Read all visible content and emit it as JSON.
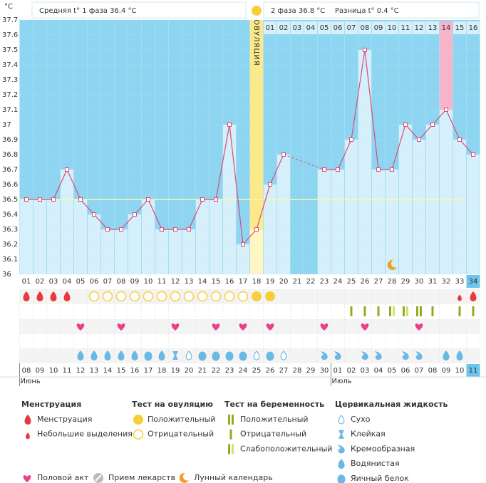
{
  "chart_data": {
    "type": "line",
    "y_unit": "°C",
    "header": {
      "phase1": "Средняя t° 1 фаза 36.4 °C",
      "phase2": "2 фаза 36.8 °C",
      "difference": "Разница t° 0.4 °C"
    },
    "ovulation_label": "ОВУЛЯЦИЯ",
    "categories": [
      "01",
      "02",
      "03",
      "04",
      "05",
      "06",
      "07",
      "08",
      "09",
      "10",
      "11",
      "12",
      "13",
      "14",
      "15",
      "16",
      "17",
      "18",
      "19",
      "20",
      "21",
      "22",
      "23",
      "24",
      "25",
      "26",
      "27",
      "28",
      "29",
      "30",
      "31",
      "32",
      "33",
      "34"
    ],
    "phase2_days": [
      "01",
      "02",
      "03",
      "04",
      "05",
      "06",
      "07",
      "08",
      "09",
      "10",
      "11",
      "12",
      "13",
      "14",
      "15",
      "16"
    ],
    "values": [
      36.5,
      36.5,
      36.5,
      36.7,
      36.5,
      36.4,
      36.3,
      36.3,
      36.4,
      36.5,
      36.3,
      36.3,
      36.3,
      36.5,
      36.5,
      37.0,
      36.2,
      36.3,
      36.6,
      36.8,
      null,
      null,
      36.7,
      36.7,
      36.9,
      37.5,
      36.7,
      36.7,
      37.0,
      36.9,
      37.0,
      37.1,
      36.9,
      36.8
    ],
    "color": "#dd4a78",
    "cover_line": 36.5,
    "highlight_days": [
      "32"
    ],
    "today": "34",
    "moon_days": [
      "28"
    ],
    "ylim": [
      36,
      37.7
    ],
    "yticks": [
      36,
      36.1,
      36.2,
      36.3,
      36.4,
      36.5,
      36.6,
      36.7,
      36.8,
      36.9,
      37,
      37.1,
      37.2,
      37.3,
      37.4,
      37.5,
      37.6,
      37.7
    ],
    "grid": true
  },
  "day_marks": [
    [
      "drop-big",
      "drop-big",
      "drop-big",
      "drop-big",
      null,
      "ov-neg",
      "ov-neg",
      "ov-neg",
      "ov-neg",
      "ov-neg",
      "ov-neg",
      "ov-neg",
      "ov-neg",
      "ov-neg",
      "ov-neg",
      "ov-neg",
      "ov-neg",
      "ov-pos",
      "ov-pos",
      null,
      null,
      null,
      null,
      null,
      null,
      null,
      null,
      null,
      null,
      null,
      null,
      null,
      "drop-small",
      "drop-big"
    ],
    [
      null,
      null,
      null,
      null,
      null,
      null,
      null,
      null,
      null,
      null,
      null,
      null,
      null,
      null,
      null,
      null,
      null,
      null,
      null,
      null,
      null,
      null,
      null,
      null,
      "preg-neg",
      "preg-neg",
      "preg-neg",
      "preg-weak",
      "preg-weak",
      "preg-pos",
      "preg-neg",
      null,
      "preg-neg",
      "preg-neg"
    ],
    [
      null,
      null,
      null,
      null,
      "heart",
      null,
      null,
      "heart",
      null,
      null,
      null,
      "heart",
      null,
      null,
      "heart",
      null,
      "heart",
      null,
      "heart",
      null,
      null,
      null,
      "heart",
      null,
      null,
      "heart",
      null,
      null,
      null,
      "heart",
      null,
      null,
      null,
      null
    ],
    [
      null,
      null,
      null,
      null,
      "water",
      "water",
      "water",
      "water",
      "water",
      "egg",
      "water",
      "sticky",
      "dry",
      "egg",
      "egg",
      "egg",
      "egg",
      "dry",
      "egg",
      "dry",
      null,
      null,
      "creamy",
      "creamy",
      null,
      "creamy",
      "creamy",
      null,
      "creamy",
      "creamy",
      null,
      "water",
      "water",
      null
    ]
  ],
  "calendar": {
    "dates": [
      "08",
      "09",
      "10",
      "11",
      "12",
      "13",
      "14",
      "15",
      "16",
      "17",
      "18",
      "19",
      "20",
      "21",
      "22",
      "23",
      "24",
      "25",
      "26",
      "27",
      "28",
      "29",
      "30",
      "01",
      "02",
      "03",
      "04",
      "05",
      "06",
      "07",
      "08",
      "09",
      "10",
      "11"
    ],
    "weekend": [
      false,
      false,
      false,
      false,
      true,
      true,
      false,
      false,
      false,
      false,
      false,
      true,
      true,
      false,
      false,
      false,
      false,
      false,
      true,
      true,
      false,
      false,
      false,
      false,
      false,
      true,
      true,
      false,
      false,
      false,
      false,
      false,
      true,
      false
    ],
    "months": [
      "Июнь",
      "Июль"
    ]
  },
  "legend": {
    "groups": [
      {
        "title": "Менструация",
        "items": [
          {
            "label": "Менструация",
            "kind": "drop-big"
          },
          {
            "label": "Небольшие выделения",
            "kind": "drop-small"
          }
        ]
      },
      {
        "title": "Тест на овуляцию",
        "items": [
          {
            "label": "Положительный",
            "kind": "ov-pos"
          },
          {
            "label": "Отрицательный",
            "kind": "ov-neg"
          }
        ]
      },
      {
        "title": "Тест на беременность",
        "items": [
          {
            "label": "Положительный",
            "kind": "preg-pos"
          },
          {
            "label": "Отрицательный",
            "kind": "preg-neg"
          },
          {
            "label": "Слабоположительный",
            "kind": "preg-weak"
          }
        ]
      },
      {
        "title": "Цервикальная жидкость",
        "items": [
          {
            "label": "Сухо",
            "kind": "dry"
          },
          {
            "label": "Клейкая",
            "kind": "sticky"
          },
          {
            "label": "Кремообразная",
            "kind": "creamy"
          },
          {
            "label": "Водянистая",
            "kind": "water"
          },
          {
            "label": "Яичный белок",
            "kind": "egg"
          }
        ]
      }
    ],
    "extras": [
      {
        "label": "Половой акт",
        "kind": "heart"
      },
      {
        "label": "Прием лекарств",
        "kind": "pill"
      },
      {
        "label": "Лунный календарь",
        "kind": "moon"
      }
    ]
  }
}
